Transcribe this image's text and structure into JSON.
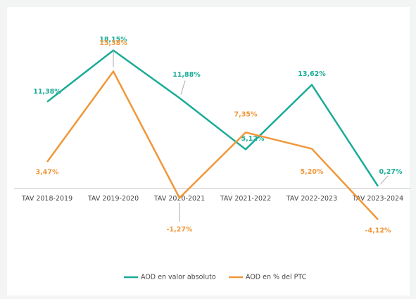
{
  "chart_data": {
    "type": "line",
    "categories": [
      "TAV 2018-2019",
      "TAV 2019-2020",
      "TAV 2020-2021",
      "TAV 2021-2022",
      "TAV 2022-2023",
      "TAV 2023-2024"
    ],
    "series": [
      {
        "name": "AOD en valor absoluto",
        "color": "#1aab97",
        "values": [
          11.38,
          18.15,
          11.88,
          5.12,
          13.62,
          0.27
        ],
        "value_labels": [
          "11,38%",
          "18,15%",
          "11,88%",
          "5,12%",
          "13,62%",
          "0,27%"
        ]
      },
      {
        "name": "AOD en % del PTC",
        "color": "#f0973a",
        "values": [
          3.47,
          15.38,
          -1.27,
          7.35,
          5.2,
          -4.12
        ],
        "value_labels": [
          "3,47%",
          "15,38%",
          "-1,27%",
          "7,35%",
          "5,20%",
          "-4,12%"
        ]
      }
    ],
    "ylim": [
      -8,
      22
    ],
    "legend": "bottom"
  }
}
